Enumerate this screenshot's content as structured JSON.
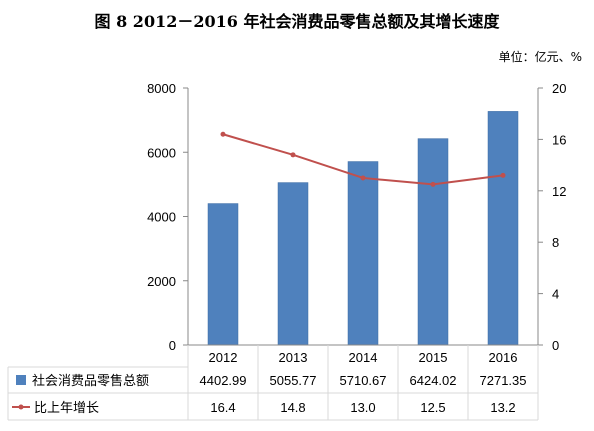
{
  "title": "图 8    2012－2016 年社会消费品零售总额及其增长速度",
  "unit_label": "单位：亿元、%",
  "colors": {
    "bar": "#4f81bd",
    "bar_stroke": "#3a6aa3",
    "line": "#c0504d",
    "axis": "#888888",
    "grid": "#d9d9d9"
  },
  "chart_data": {
    "type": "bar",
    "categories": [
      "2012",
      "2013",
      "2014",
      "2015",
      "2016"
    ],
    "series": [
      {
        "name": "社会消费品零售总额",
        "type": "bar",
        "axis": "left",
        "values": [
          4402.99,
          5055.77,
          5710.67,
          6424.02,
          7271.35
        ],
        "labels": [
          "4402.99",
          "5055.77",
          "5710.67",
          "6424.02",
          "7271.35"
        ]
      },
      {
        "name": "比上年增长",
        "type": "line",
        "axis": "right",
        "values": [
          16.4,
          14.8,
          13.0,
          12.5,
          13.2
        ],
        "labels": [
          "16.4",
          "14.8",
          "13.0",
          "12.5",
          "13.2"
        ]
      }
    ],
    "y_left": {
      "min": 0,
      "max": 8000,
      "ticks": [
        "0",
        "2000",
        "4000",
        "6000",
        "8000"
      ]
    },
    "y_right": {
      "min": 0,
      "max": 20,
      "ticks": [
        "0",
        "4",
        "8",
        "12",
        "16",
        "20"
      ]
    },
    "legend": "data-table-bottom",
    "grid": false
  }
}
